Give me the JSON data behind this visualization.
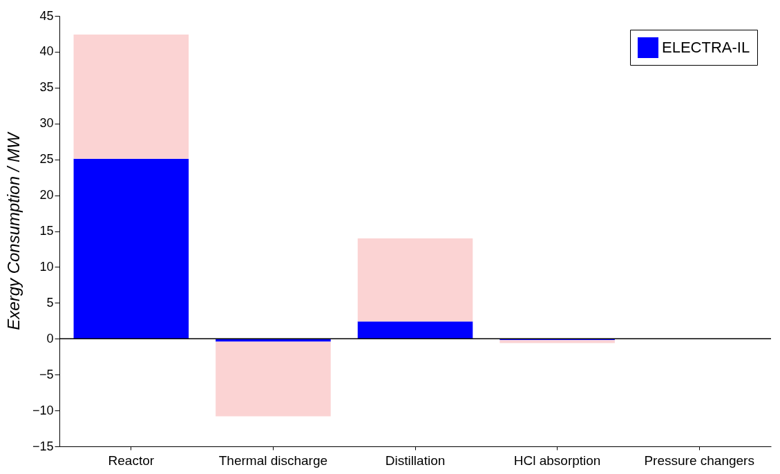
{
  "chart_data": {
    "type": "bar",
    "ylabel": "Exergy Consumption / MW",
    "stacked": true,
    "categories": [
      "Reactor",
      "Thermal discharge",
      "Distillation",
      "HCl absorption",
      "Pressure changers"
    ],
    "series": [
      {
        "name": "ELECTRA-IL",
        "color": "#0000ff",
        "values": [
          25.1,
          -0.4,
          2.4,
          -0.2,
          0
        ]
      },
      {
        "color": "#fbd3d3",
        "values": [
          17.3,
          -10.4,
          11.6,
          -0.4,
          0
        ]
      }
    ],
    "ylim": [
      -15,
      45
    ],
    "yticks": [
      -15,
      -10,
      -5,
      0,
      5,
      10,
      15,
      20,
      25,
      30,
      35,
      40,
      45
    ],
    "ref_lines": [
      {
        "axis": "y",
        "value": 0
      }
    ],
    "legend": "top right",
    "grid": false
  }
}
